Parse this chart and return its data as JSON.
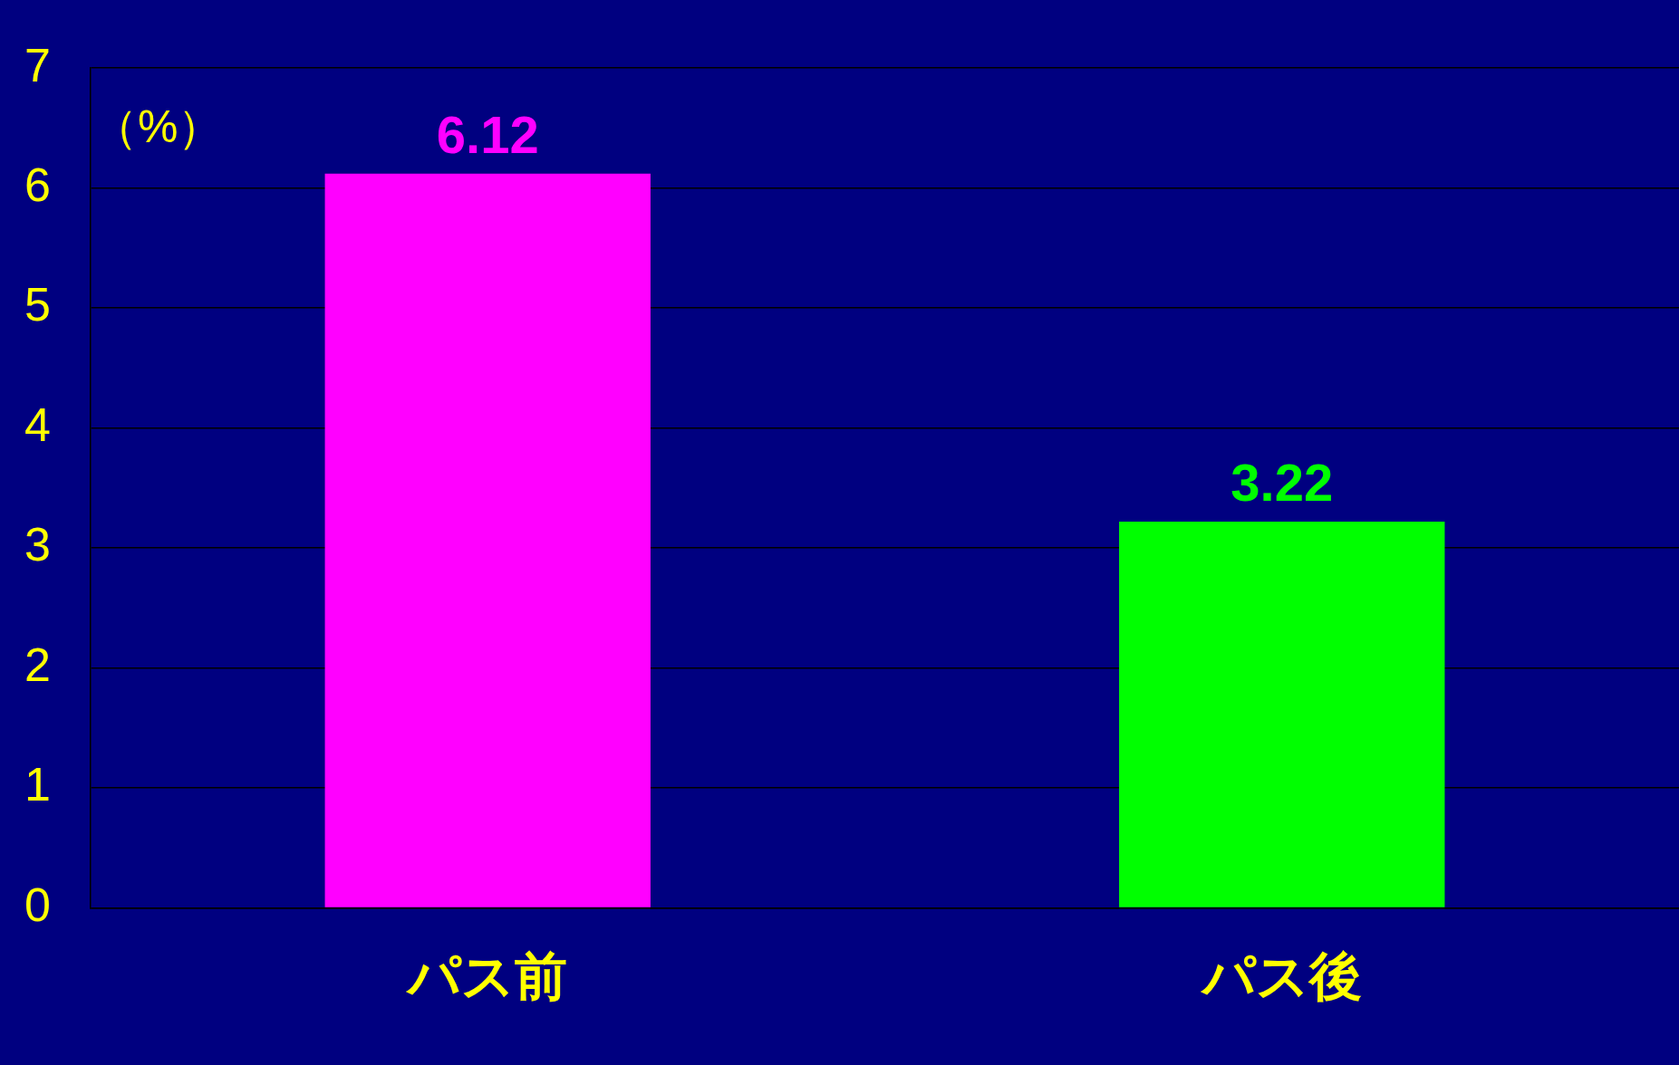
{
  "chart_data": {
    "type": "bar",
    "ylabel": "（%）",
    "categories": [
      "パス前",
      "パス後"
    ],
    "values": [
      6.12,
      3.22
    ],
    "colors": [
      "#ff00ff",
      "#00ff00"
    ],
    "ylim": [
      0,
      7
    ],
    "yticks": [
      0,
      1,
      2,
      3,
      4,
      5,
      6,
      7
    ],
    "grid": "y",
    "data_labels": true
  }
}
